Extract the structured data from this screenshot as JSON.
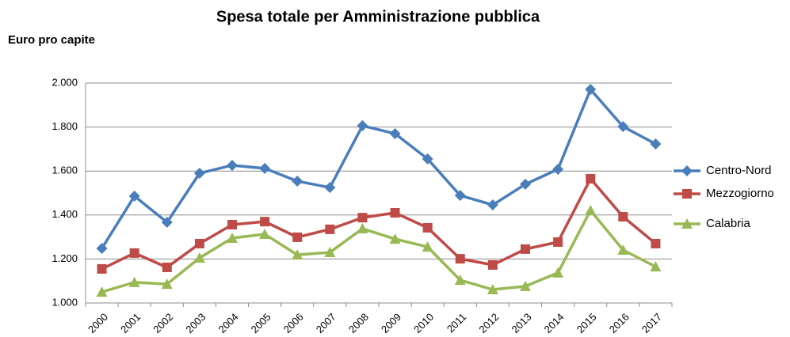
{
  "chart_data": {
    "type": "line",
    "title": "Spesa totale per Amministrazione pubblica",
    "y_label": "Euro pro capite",
    "categories": [
      "2000",
      "2001",
      "2002",
      "2003",
      "2004",
      "2005",
      "2006",
      "2007",
      "2008",
      "2009",
      "2010",
      "2011",
      "2012",
      "2013",
      "2014",
      "2015",
      "2016",
      "2017"
    ],
    "series": [
      {
        "name": "Centro-Nord",
        "color": "#4a7ebb",
        "marker": "diamond",
        "values": [
          1248,
          1486,
          1367,
          1590,
          1626,
          1612,
          1554,
          1525,
          1806,
          1770,
          1655,
          1489,
          1446,
          1540,
          1608,
          1971,
          1802,
          1723
        ]
      },
      {
        "name": "Mezzogiorno",
        "color": "#be4b48",
        "marker": "square",
        "values": [
          1155,
          1227,
          1162,
          1270,
          1356,
          1370,
          1299,
          1335,
          1388,
          1410,
          1342,
          1201,
          1173,
          1245,
          1277,
          1565,
          1392,
          1270
        ]
      },
      {
        "name": "Calabria",
        "color": "#98b954",
        "marker": "triangle",
        "values": [
          1050,
          1094,
          1086,
          1205,
          1295,
          1313,
          1219,
          1230,
          1338,
          1291,
          1255,
          1104,
          1061,
          1076,
          1137,
          1421,
          1241,
          1165
        ]
      }
    ],
    "ylim": [
      1000,
      2000
    ],
    "yticks": [
      {
        "value": 1000,
        "label": "1.000"
      },
      {
        "value": 1200,
        "label": "1.200"
      },
      {
        "value": 1400,
        "label": "1.400"
      },
      {
        "value": 1600,
        "label": "1.600"
      },
      {
        "value": 1800,
        "label": "1.800"
      },
      {
        "value": 2000,
        "label": "2.000"
      }
    ],
    "grid": true,
    "legend": "right"
  }
}
